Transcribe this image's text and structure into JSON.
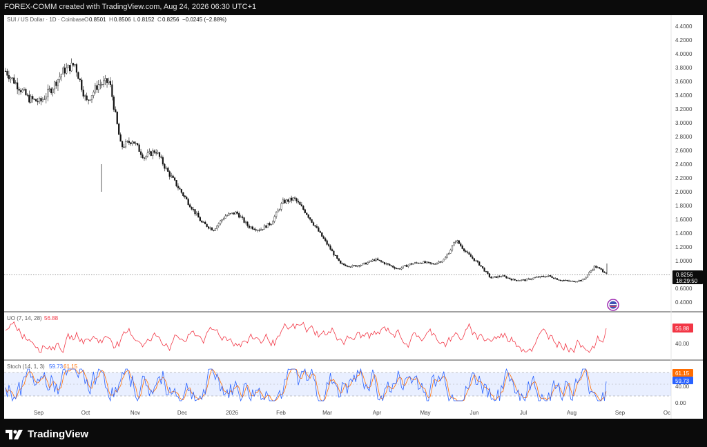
{
  "header": {
    "created_text": "FOREX-COMM created with TradingView.com, Aug 24, 2026 06:30 UTC+1"
  },
  "symbol": {
    "title": "SUI / US Dollar · 1D · Coinbase",
    "o_label": "O",
    "o_value": "0.8501",
    "h_label": "H",
    "h_value": "0.8506",
    "l_label": "L",
    "l_value": "0.8152",
    "c_label": "C",
    "c_value": "0.8256",
    "change": "−0.0245 (−2.88%)"
  },
  "price_axis": {
    "labels": [
      "4.4000",
      "4.2000",
      "4.0000",
      "3.8000",
      "3.6000",
      "3.4000",
      "3.2000",
      "3.0000",
      "2.8000",
      "2.6000",
      "2.4000",
      "2.2000",
      "2.0000",
      "1.8000",
      "1.6000",
      "1.4000",
      "1.2000",
      "1.0000",
      "0.8000",
      "0.6000",
      "0.4000"
    ],
    "last_price": "0.8256",
    "countdown": "18:29:50"
  },
  "time_axis": {
    "labels": [
      "Sep",
      "Oct",
      "Nov",
      "Dec",
      "2026",
      "Feb",
      "Mar",
      "Apr",
      "May",
      "Jun",
      "Jul",
      "Aug",
      "Sep",
      "Oc"
    ]
  },
  "uo": {
    "label": "UO (7, 14, 28)",
    "value": "56.88",
    "axis_labels": [
      "60.00",
      "40.00"
    ],
    "color": "#f23645"
  },
  "stoch": {
    "label": "Stoch (14, 1, 3)",
    "k_value": "59.73",
    "d_value": "61.15",
    "axis_labels": [
      "40.00",
      "0.00"
    ],
    "k_color": "#2962ff",
    "d_color": "#ff6d00"
  },
  "brand": {
    "name": "TradingView"
  },
  "chart_data": [
    {
      "type": "candlestick",
      "title": "SUI / US Dollar · 1D · Coinbase",
      "x_start": "Aug 2025",
      "x_end": "Aug 24, 2026",
      "ylim": [
        0.4,
        4.4
      ],
      "grid": false,
      "close_path": [
        [
          "Aug 2025",
          3.75
        ],
        [
          "Aug 2025",
          3.55
        ],
        [
          "Aug 2025",
          3.35
        ],
        [
          "Sep 2025",
          3.3
        ],
        [
          "Sep 2025",
          3.5
        ],
        [
          "Sep 2025",
          3.75
        ],
        [
          "Sep 2025",
          3.85
        ],
        [
          "Sep 2025",
          3.3
        ],
        [
          "Oct 2025",
          3.55
        ],
        [
          "Oct 2025",
          3.6
        ],
        [
          "Oct 10, 2025",
          2.65
        ],
        [
          "Oct 2025",
          2.75
        ],
        [
          "Oct 2025",
          2.5
        ],
        [
          "Oct 2025",
          2.6
        ],
        [
          "Nov 2025",
          2.3
        ],
        [
          "Nov 2025",
          2.05
        ],
        [
          "Nov 2025",
          1.8
        ],
        [
          "Nov 2025",
          1.55
        ],
        [
          "Dec 2025",
          1.45
        ],
        [
          "Dec 2025",
          1.65
        ],
        [
          "Dec 2025",
          1.7
        ],
        [
          "Dec 2025",
          1.5
        ],
        [
          "Jan 2026",
          1.45
        ],
        [
          "Jan 2026",
          1.55
        ],
        [
          "Jan 2026",
          1.85
        ],
        [
          "Jan 2026",
          1.9
        ],
        [
          "Jan 2026",
          1.7
        ],
        [
          "Jan 2026",
          1.45
        ],
        [
          "Feb 2026",
          1.2
        ],
        [
          "Feb 2026",
          0.95
        ],
        [
          "Feb 2026",
          0.92
        ],
        [
          "Mar 2026",
          0.95
        ],
        [
          "Mar 2026",
          1.02
        ],
        [
          "Mar 2026",
          0.95
        ],
        [
          "Apr 2026",
          0.88
        ],
        [
          "Apr 2026",
          0.95
        ],
        [
          "Apr 2026",
          0.98
        ],
        [
          "May 2026",
          0.95
        ],
        [
          "May 2026",
          1.02
        ],
        [
          "May 2026",
          1.3
        ],
        [
          "May 2026",
          1.1
        ],
        [
          "May 2026",
          0.95
        ],
        [
          "Jun 2026",
          0.75
        ],
        [
          "Jun 2026",
          0.78
        ],
        [
          "Jun 2026",
          0.72
        ],
        [
          "Jul 2026",
          0.72
        ],
        [
          "Jul 2026",
          0.76
        ],
        [
          "Jul 2026",
          0.78
        ],
        [
          "Aug 2026",
          0.72
        ],
        [
          "Aug 2026",
          0.7
        ],
        [
          "Aug 20, 2026",
          0.72
        ],
        [
          "Aug 22, 2026",
          0.92
        ],
        [
          "Aug 24, 2026",
          0.8256
        ]
      ],
      "last": {
        "open": 0.8501,
        "high": 0.8506,
        "low": 0.8152,
        "close": 0.8256
      }
    },
    {
      "type": "line",
      "title": "UO (7, 14, 28)",
      "series": [
        {
          "name": "UO",
          "last": 56.88
        }
      ]
    },
    {
      "type": "line",
      "title": "Stoch (14, 1, 3)",
      "series": [
        {
          "name": "%K",
          "last": 59.73
        },
        {
          "name": "%D",
          "last": 61.15
        }
      ]
    }
  ]
}
